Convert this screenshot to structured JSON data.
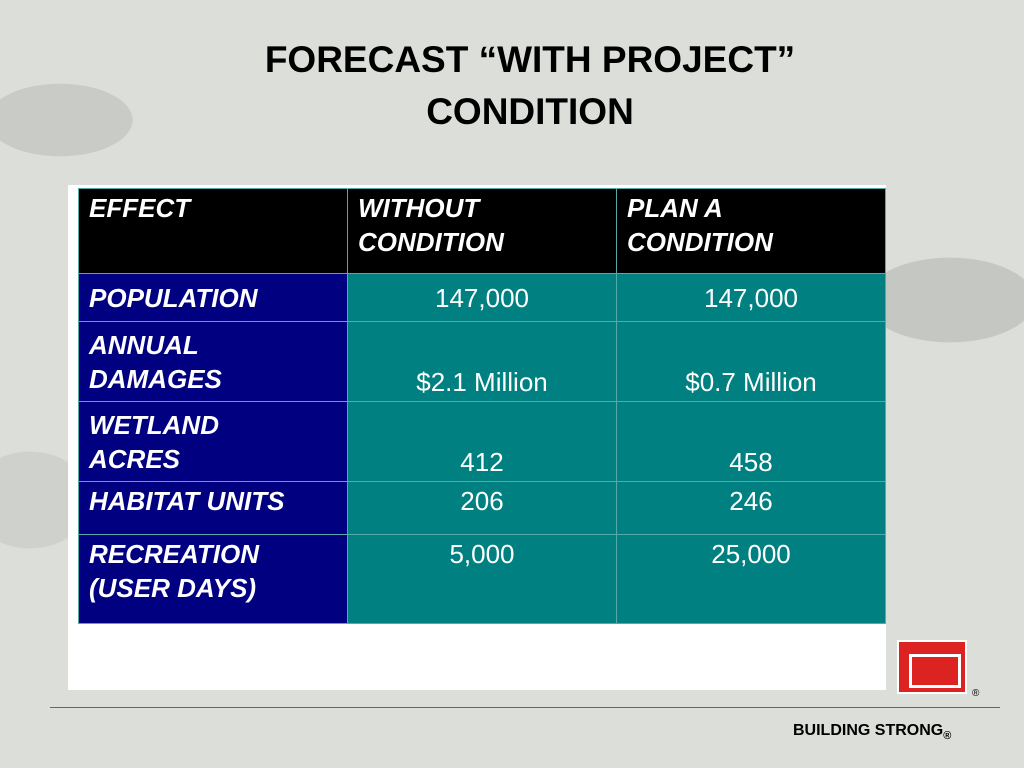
{
  "header": {
    "title": "FORECAST “WITH PROJECT”\nCONDITION"
  },
  "table": {
    "columns": [
      "EFFECT",
      "WITHOUT\nCONDITION",
      "PLAN A\nCONDITION"
    ],
    "rows": [
      [
        "POPULATION",
        "147,000",
        "147,000"
      ],
      [
        "ANNUAL\nDAMAGES",
        "$2.1 Million",
        "$0.7 Million"
      ],
      [
        "WETLAND\nACRES",
        "412",
        "458"
      ],
      [
        "HABITAT UNITS",
        "206",
        "246"
      ],
      [
        "RECREATION\n(USER DAYS)",
        "5,000",
        "25,000"
      ]
    ]
  },
  "logo": {
    "mark": "®"
  },
  "footer": {
    "text": "BUILDING STRONG",
    "mark": "®"
  }
}
